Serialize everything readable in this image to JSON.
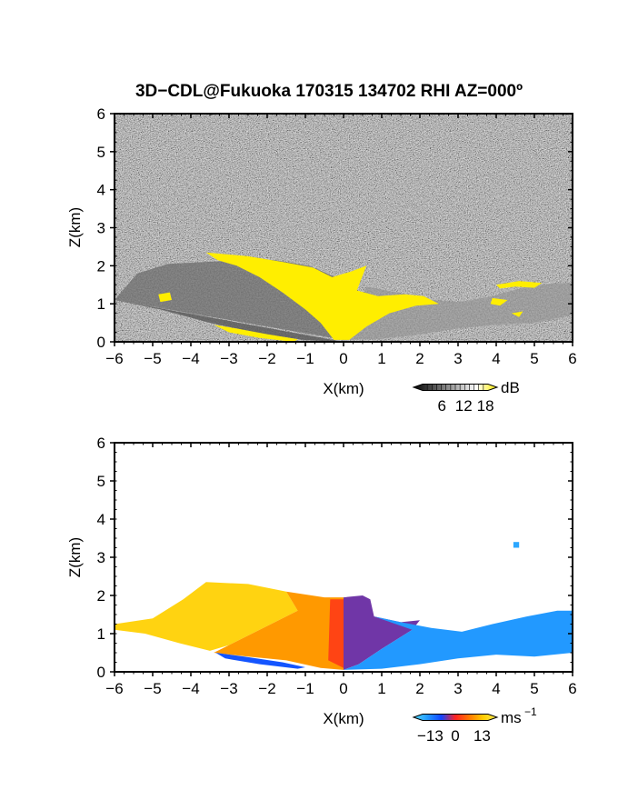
{
  "title": "3D−CDL@Fukuoka 170315 134702 RHI AZ=000º",
  "colors": {
    "yellow": "#ffee00",
    "bg_noise_dark": "#111111",
    "bg_noise_light": "#8a8a8a"
  },
  "chart_data": [
    {
      "type": "heatmap",
      "name": "snr-rhi",
      "xlabel": "X(km)",
      "ylabel": "Z(km)",
      "xlim": [
        -6,
        6
      ],
      "ylim": [
        0,
        6
      ],
      "x_ticks": [
        "−6",
        "−5",
        "−4",
        "−3",
        "−2",
        "−1",
        "0",
        "1",
        "2",
        "3",
        "4",
        "5",
        "6"
      ],
      "y_ticks": [
        "0",
        "1",
        "2",
        "3",
        "4",
        "5",
        "6"
      ],
      "colorbar": {
        "unit": "dB",
        "ticks": [
          "6",
          "12",
          "18"
        ],
        "range": [
          0,
          21
        ],
        "colors": [
          "#000000",
          "#555555",
          "#aaaaaa",
          "#ffffff",
          "#ffee00"
        ]
      },
      "layers": [
        {
          "name": "aerosol-top-left",
          "polygon": [
            [
              -6,
              1.1
            ],
            [
              -5.4,
              1.8
            ],
            [
              -4.6,
              2.05
            ],
            [
              -3.6,
              2.1
            ],
            [
              -2.7,
              2.15
            ],
            [
              -1.8,
              2.15
            ],
            [
              -0.9,
              2.0
            ],
            [
              -0.2,
              1.7
            ],
            [
              0,
              0.05
            ]
          ],
          "value": 11
        },
        {
          "name": "aerosol-right",
          "polygon": [
            [
              0,
              0.05
            ],
            [
              0.6,
              1.45
            ],
            [
              1.4,
              1.3
            ],
            [
              2.3,
              1.1
            ],
            [
              3.1,
              1.05
            ],
            [
              3.9,
              1.2
            ],
            [
              4.8,
              1.45
            ],
            [
              5.6,
              1.55
            ],
            [
              6,
              1.55
            ],
            [
              6,
              0.7
            ],
            [
              5,
              0.5
            ],
            [
              4,
              0.45
            ],
            [
              3,
              0.35
            ],
            [
              2,
              0.2
            ],
            [
              1,
              0.08
            ]
          ],
          "value": 14
        },
        {
          "name": "aerosol-bottom-left",
          "polygon": [
            [
              -6,
              1.1
            ],
            [
              -4.8,
              0.85
            ],
            [
              -3.5,
              0.5
            ],
            [
              -2.2,
              0.22
            ],
            [
              -1.0,
              0.04
            ],
            [
              0,
              0.0
            ]
          ],
          "value": 9
        }
      ],
      "saturated_regions": [
        {
          "name": "yellow-upper-left",
          "polygon": [
            [
              -3.6,
              2.35
            ],
            [
              -2.5,
              2.25
            ],
            [
              -1.6,
              2.1
            ],
            [
              -0.8,
              1.95
            ],
            [
              -0.3,
              1.7
            ],
            [
              0.2,
              1.85
            ],
            [
              0.6,
              2.0
            ],
            [
              0.35,
              1.35
            ],
            [
              0.9,
              1.2
            ],
            [
              1.6,
              1.25
            ],
            [
              2.1,
              1.2
            ],
            [
              2.5,
              1.0
            ],
            [
              1.9,
              0.95
            ],
            [
              1.2,
              0.75
            ],
            [
              0.6,
              0.4
            ],
            [
              0.15,
              0.05
            ],
            [
              -0.25,
              0.05
            ],
            [
              -0.6,
              0.5
            ],
            [
              -1.0,
              0.85
            ],
            [
              -1.6,
              1.3
            ],
            [
              -2.2,
              1.7
            ],
            [
              -2.8,
              2.0
            ],
            [
              -3.3,
              2.15
            ]
          ]
        },
        {
          "name": "yellow-left-spot",
          "polygon": [
            [
              -4.85,
              1.25
            ],
            [
              -4.55,
              1.3
            ],
            [
              -4.5,
              1.1
            ],
            [
              -4.8,
              1.05
            ]
          ]
        },
        {
          "name": "yellow-bottom-left",
          "polygon": [
            [
              -3.4,
              0.45
            ],
            [
              -2.8,
              0.35
            ],
            [
              -2.0,
              0.2
            ],
            [
              -1.2,
              0.07
            ],
            [
              -1.3,
              0.0
            ],
            [
              -2.2,
              0.1
            ],
            [
              -3.0,
              0.25
            ]
          ]
        },
        {
          "name": "yellow-right-top",
          "polygon": [
            [
              4.0,
              1.5
            ],
            [
              4.6,
              1.6
            ],
            [
              5.2,
              1.55
            ],
            [
              5.0,
              1.42
            ],
            [
              4.5,
              1.45
            ],
            [
              4.1,
              1.4
            ]
          ]
        },
        {
          "name": "yellow-right-mid",
          "polygon": [
            [
              3.9,
              1.15
            ],
            [
              4.3,
              1.1
            ],
            [
              4.1,
              0.95
            ],
            [
              3.85,
              1.0
            ]
          ]
        },
        {
          "name": "yellow-right-small",
          "polygon": [
            [
              4.4,
              0.75
            ],
            [
              4.7,
              0.8
            ],
            [
              4.6,
              0.65
            ]
          ]
        }
      ]
    },
    {
      "type": "heatmap",
      "name": "doppler-velocity-rhi",
      "xlabel": "X(km)",
      "ylabel": "Z(km)",
      "xlim": [
        -6,
        6
      ],
      "ylim": [
        0,
        6
      ],
      "x_ticks": [
        "−6",
        "−5",
        "−4",
        "−3",
        "−2",
        "−1",
        "0",
        "1",
        "2",
        "3",
        "4",
        "5",
        "6"
      ],
      "y_ticks": [
        "0",
        "1",
        "2",
        "3",
        "4",
        "5",
        "6"
      ],
      "colorbar": {
        "unit": "ms",
        "unit_exp": "−1",
        "ticks": [
          "−13",
          "0",
          "13"
        ],
        "range": [
          -15,
          15
        ],
        "colors": [
          "#55ddff",
          "#2299ff",
          "#1144ff",
          "#ff2222",
          "#ff7700",
          "#ffcc00",
          "#ffee55"
        ]
      },
      "regions": [
        {
          "name": "toward-left-outer",
          "polygon": [
            [
              -6,
              1.25
            ],
            [
              -5.0,
              1.4
            ],
            [
              -4.2,
              1.9
            ],
            [
              -3.6,
              2.35
            ],
            [
              -2.5,
              2.3
            ],
            [
              -1.5,
              2.1
            ],
            [
              -1.2,
              1.6
            ],
            [
              -2.0,
              1.2
            ],
            [
              -3.0,
              0.7
            ],
            [
              -3.5,
              0.55
            ],
            [
              -4.3,
              0.75
            ],
            [
              -5.2,
              1.0
            ],
            [
              -6,
              1.1
            ]
          ],
          "value": 11
        },
        {
          "name": "toward-left-inner",
          "polygon": [
            [
              -1.5,
              2.1
            ],
            [
              -0.5,
              1.95
            ],
            [
              0,
              1.95
            ],
            [
              0,
              0.05
            ],
            [
              -0.6,
              0.1
            ],
            [
              -1.5,
              0.3
            ],
            [
              -2.5,
              0.4
            ],
            [
              -3.4,
              0.5
            ],
            [
              -3.0,
              0.7
            ],
            [
              -2.0,
              1.2
            ],
            [
              -1.2,
              1.6
            ]
          ],
          "value": 7
        },
        {
          "name": "toward-core",
          "polygon": [
            [
              -0.35,
              1.9
            ],
            [
              0,
              1.9
            ],
            [
              0,
              0.1
            ],
            [
              -0.4,
              0.3
            ]
          ],
          "value": 2
        },
        {
          "name": "away-near",
          "polygon": [
            [
              0,
              1.95
            ],
            [
              0.5,
              2.0
            ],
            [
              0.7,
              1.9
            ],
            [
              0.8,
              1.45
            ],
            [
              1.5,
              1.3
            ],
            [
              2.0,
              1.35
            ],
            [
              1.8,
              1.1
            ],
            [
              1.0,
              0.6
            ],
            [
              0.4,
              0.2
            ],
            [
              0,
              0.05
            ]
          ],
          "value": -3
        },
        {
          "name": "away-far",
          "polygon": [
            [
              0.8,
              1.45
            ],
            [
              1.5,
              1.3
            ],
            [
              2.3,
              1.15
            ],
            [
              3.1,
              1.05
            ],
            [
              3.9,
              1.25
            ],
            [
              4.8,
              1.45
            ],
            [
              5.6,
              1.6
            ],
            [
              6,
              1.6
            ],
            [
              6,
              0.5
            ],
            [
              5,
              0.4
            ],
            [
              4,
              0.45
            ],
            [
              3,
              0.35
            ],
            [
              2,
              0.2
            ],
            [
              1,
              0.08
            ],
            [
              0,
              0.05
            ],
            [
              0.4,
              0.2
            ],
            [
              1.0,
              0.6
            ],
            [
              1.8,
              1.1
            ]
          ],
          "value": -10
        },
        {
          "name": "bottom-left-speckle",
          "polygon": [
            [
              -3.35,
              0.5
            ],
            [
              -2.6,
              0.4
            ],
            [
              -1.6,
              0.25
            ],
            [
              -1.0,
              0.12
            ],
            [
              -1.2,
              0.08
            ],
            [
              -2.2,
              0.2
            ],
            [
              -3.1,
              0.35
            ]
          ],
          "value": -6
        },
        {
          "name": "isolated-point",
          "polygon": [
            [
              4.45,
              3.4
            ],
            [
              4.6,
              3.4
            ],
            [
              4.6,
              3.25
            ],
            [
              4.45,
              3.25
            ]
          ],
          "value": -11
        }
      ]
    }
  ]
}
